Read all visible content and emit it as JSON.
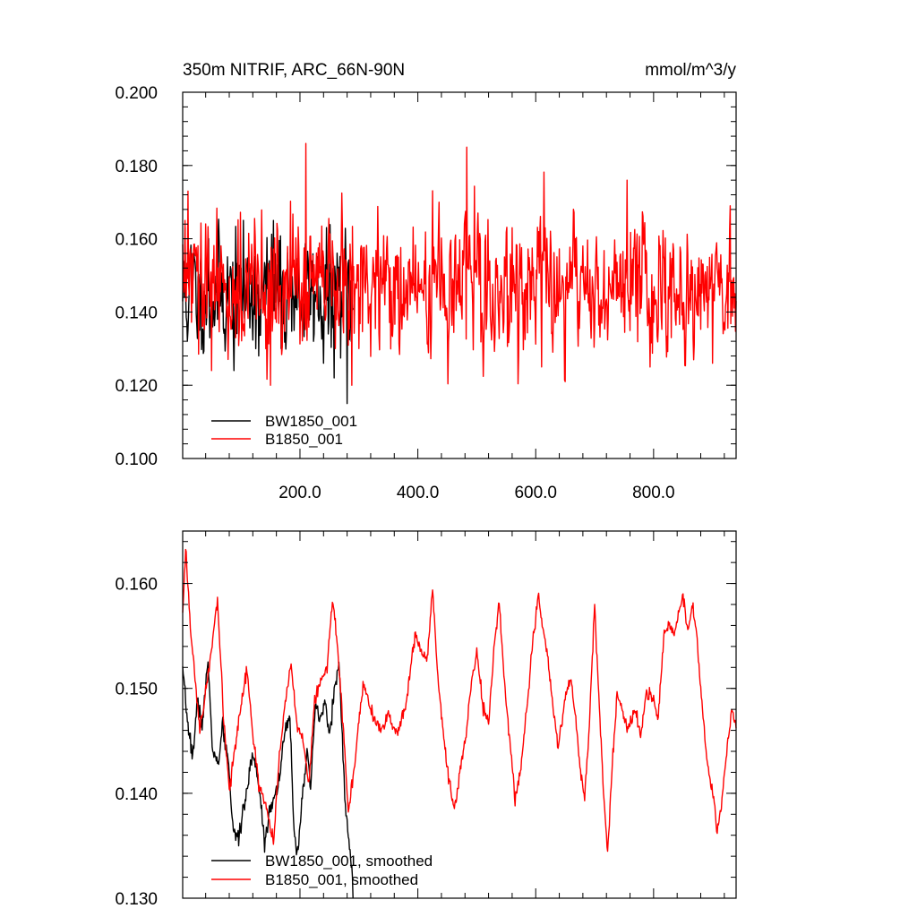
{
  "chart_data": [
    {
      "type": "line",
      "title_left": "350m NITRIF, ARC_66N-90N",
      "title_right": "mmol/m^3/y",
      "xlim": [
        1,
        940
      ],
      "ylim": [
        0.1,
        0.2
      ],
      "y_ticks": [
        "0.200",
        "0.180",
        "0.160",
        "0.140",
        "0.120",
        "0.100"
      ],
      "y_tick_values": [
        0.2,
        0.18,
        0.16,
        0.14,
        0.12,
        0.1
      ],
      "x_ticks": [
        "200.0",
        "400.0",
        "600.0",
        "800.0"
      ],
      "x_tick_values": [
        200,
        400,
        600,
        800
      ],
      "grid": false,
      "legend_position": "bottom-left",
      "series": [
        {
          "name": "BW1850_001",
          "color": "#000000",
          "x_range": [
            1,
            290
          ],
          "mean": 0.145,
          "spread": 0.0075,
          "seed": 11,
          "anchors": [
            [
              5,
              0.163
            ],
            [
              12,
              0.146
            ],
            [
              20,
              0.156
            ],
            [
              30,
              0.135
            ],
            [
              45,
              0.16
            ],
            [
              60,
              0.138
            ],
            [
              75,
              0.14
            ],
            [
              88,
              0.124
            ],
            [
              100,
              0.152
            ],
            [
              118,
              0.15
            ],
            [
              130,
              0.128
            ],
            [
              148,
              0.154
            ],
            [
              155,
              0.165
            ],
            [
              168,
              0.13
            ],
            [
              185,
              0.152
            ],
            [
              200,
              0.141
            ],
            [
              215,
              0.148
            ],
            [
              230,
              0.153
            ],
            [
              240,
              0.126
            ],
            [
              248,
              0.134
            ],
            [
              258,
              0.122
            ],
            [
              265,
              0.147
            ],
            [
              272,
              0.14
            ],
            [
              280,
              0.115
            ],
            [
              287,
              0.132
            ]
          ]
        },
        {
          "name": "B1850_001",
          "color": "#ff0000",
          "x_range": [
            1,
            940
          ],
          "mean": 0.1465,
          "spread": 0.0085,
          "seed": 29,
          "anchors": [
            [
              5,
              0.165
            ],
            [
              10,
              0.173
            ],
            [
              50,
              0.124
            ],
            [
              150,
              0.12
            ],
            [
              210,
              0.186
            ],
            [
              260,
              0.13
            ],
            [
              288,
              0.12
            ],
            [
              300,
              0.13
            ],
            [
              480,
              0.166
            ],
            [
              483,
              0.185
            ],
            [
              560,
              0.163
            ],
            [
              610,
              0.125
            ],
            [
              650,
              0.121
            ],
            [
              755,
              0.176
            ],
            [
              830,
              0.133
            ],
            [
              900,
              0.126
            ],
            [
              930,
              0.169
            ],
            [
              938,
              0.145
            ]
          ]
        }
      ]
    },
    {
      "type": "line",
      "xlim": [
        1,
        940
      ],
      "ylim": [
        0.13,
        0.165
      ],
      "y_ticks": [
        "0.160",
        "0.150",
        "0.140",
        "0.130"
      ],
      "y_tick_values": [
        0.16,
        0.15,
        0.14,
        0.13
      ],
      "grid": false,
      "legend_position": "bottom-left",
      "series": [
        {
          "name": "BW1850_001, smoothed",
          "color": "#000000",
          "x_range": [
            1,
            290
          ],
          "jitter": 0.0008,
          "seed": 7,
          "points": [
            [
              1,
              0.1515
            ],
            [
              10,
              0.1465
            ],
            [
              18,
              0.1435
            ],
            [
              26,
              0.1488
            ],
            [
              34,
              0.1465
            ],
            [
              44,
              0.1525
            ],
            [
              52,
              0.144
            ],
            [
              62,
              0.1425
            ],
            [
              68,
              0.1465
            ],
            [
              78,
              0.1432
            ],
            [
              86,
              0.137
            ],
            [
              95,
              0.1352
            ],
            [
              102,
              0.138
            ],
            [
              110,
              0.1398
            ],
            [
              118,
              0.1438
            ],
            [
              126,
              0.1425
            ],
            [
              134,
              0.139
            ],
            [
              140,
              0.1352
            ],
            [
              148,
              0.1385
            ],
            [
              156,
              0.1395
            ],
            [
              165,
              0.1415
            ],
            [
              175,
              0.146
            ],
            [
              183,
              0.147
            ],
            [
              190,
              0.1365
            ],
            [
              196,
              0.1342
            ],
            [
              204,
              0.14
            ],
            [
              212,
              0.144
            ],
            [
              218,
              0.14
            ],
            [
              226,
              0.1485
            ],
            [
              234,
              0.1468
            ],
            [
              242,
              0.1488
            ],
            [
              250,
              0.1455
            ],
            [
              258,
              0.1498
            ],
            [
              266,
              0.1522
            ],
            [
              272,
              0.145
            ],
            [
              278,
              0.1382
            ],
            [
              283,
              0.1352
            ],
            [
              287,
              0.1335
            ],
            [
              290,
              0.1305
            ]
          ]
        },
        {
          "name": "B1850_001, smoothed",
          "color": "#ff0000",
          "x_range": [
            1,
            940
          ],
          "jitter": 0.0006,
          "seed": 17,
          "points": [
            [
              1,
              0.157
            ],
            [
              6,
              0.1635
            ],
            [
              14,
              0.156
            ],
            [
              22,
              0.1508
            ],
            [
              30,
              0.1462
            ],
            [
              40,
              0.1495
            ],
            [
              52,
              0.1545
            ],
            [
              60,
              0.1585
            ],
            [
              70,
              0.1475
            ],
            [
              80,
              0.14
            ],
            [
              90,
              0.1445
            ],
            [
              100,
              0.1482
            ],
            [
              110,
              0.1518
            ],
            [
              120,
              0.1455
            ],
            [
              130,
              0.141
            ],
            [
              145,
              0.1382
            ],
            [
              155,
              0.1352
            ],
            [
              165,
              0.1435
            ],
            [
              175,
              0.1488
            ],
            [
              185,
              0.1525
            ],
            [
              195,
              0.1465
            ],
            [
              205,
              0.1448
            ],
            [
              215,
              0.1408
            ],
            [
              225,
              0.1488
            ],
            [
              235,
              0.1508
            ],
            [
              245,
              0.1515
            ],
            [
              255,
              0.1588
            ],
            [
              262,
              0.1552
            ],
            [
              272,
              0.1475
            ],
            [
              282,
              0.1382
            ],
            [
              292,
              0.1425
            ],
            [
              300,
              0.1468
            ],
            [
              308,
              0.1505
            ],
            [
              320,
              0.1478
            ],
            [
              335,
              0.146
            ],
            [
              350,
              0.1475
            ],
            [
              365,
              0.1455
            ],
            [
              380,
              0.1485
            ],
            [
              395,
              0.1552
            ],
            [
              405,
              0.1535
            ],
            [
              415,
              0.1525
            ],
            [
              425,
              0.1595
            ],
            [
              435,
              0.1502
            ],
            [
              445,
              0.1448
            ],
            [
              455,
              0.1405
            ],
            [
              462,
              0.1385
            ],
            [
              472,
              0.1425
            ],
            [
              482,
              0.1455
            ],
            [
              490,
              0.1502
            ],
            [
              500,
              0.1535
            ],
            [
              510,
              0.1485
            ],
            [
              520,
              0.1465
            ],
            [
              530,
              0.1542
            ],
            [
              538,
              0.1585
            ],
            [
              546,
              0.1512
            ],
            [
              555,
              0.1455
            ],
            [
              565,
              0.1395
            ],
            [
              575,
              0.1425
            ],
            [
              585,
              0.1482
            ],
            [
              595,
              0.1545
            ],
            [
              605,
              0.159
            ],
            [
              612,
              0.1555
            ],
            [
              618,
              0.1542
            ],
            [
              628,
              0.1488
            ],
            [
              638,
              0.1445
            ],
            [
              650,
              0.1492
            ],
            [
              660,
              0.1508
            ],
            [
              668,
              0.1472
            ],
            [
              675,
              0.1425
            ],
            [
              683,
              0.1395
            ],
            [
              690,
              0.1455
            ],
            [
              700,
              0.158
            ],
            [
              706,
              0.1505
            ],
            [
              714,
              0.1412
            ],
            [
              722,
              0.1342
            ],
            [
              730,
              0.1428
            ],
            [
              738,
              0.1495
            ],
            [
              748,
              0.1475
            ],
            [
              758,
              0.1462
            ],
            [
              768,
              0.1482
            ],
            [
              778,
              0.1455
            ],
            [
              788,
              0.1495
            ],
            [
              798,
              0.1492
            ],
            [
              808,
              0.1472
            ],
            [
              818,
              0.1555
            ],
            [
              826,
              0.1562
            ],
            [
              834,
              0.1552
            ],
            [
              842,
              0.157
            ],
            [
              850,
              0.159
            ],
            [
              858,
              0.1552
            ],
            [
              866,
              0.1582
            ],
            [
              874,
              0.1545
            ],
            [
              884,
              0.1472
            ],
            [
              892,
              0.1425
            ],
            [
              900,
              0.1402
            ],
            [
              908,
              0.1362
            ],
            [
              916,
              0.1395
            ],
            [
              924,
              0.1438
            ],
            [
              932,
              0.1478
            ],
            [
              940,
              0.1465
            ]
          ]
        }
      ]
    }
  ]
}
